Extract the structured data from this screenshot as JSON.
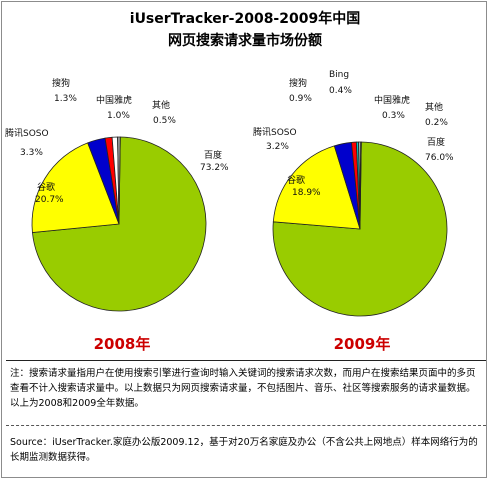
{
  "title_line1": "iUserTracker-2008-2009年中国",
  "title_line2": "网页搜索请求量市场份额",
  "chart_data": [
    {
      "type": "pie",
      "year_label": "2008年",
      "slices": [
        {
          "name": "百度",
          "value": 73.2,
          "label": "73.2%",
          "color": "#99cc00"
        },
        {
          "name": "谷歌",
          "value": 20.7,
          "label": "20.7%",
          "color": "#ffff00"
        },
        {
          "name": "腾讯SOSO",
          "value": 3.3,
          "label": "3.3%",
          "color": "#0000cc"
        },
        {
          "name": "搜狗",
          "value": 1.3,
          "label": "1.3%",
          "color": "#ff0000"
        },
        {
          "name": "中国雅虎",
          "value": 1.0,
          "label": "1.0%",
          "color": "#ffffff"
        },
        {
          "name": "其他",
          "value": 0.5,
          "label": "0.5%",
          "color": "#999999"
        }
      ]
    },
    {
      "type": "pie",
      "year_label": "2009年",
      "slices": [
        {
          "name": "百度",
          "value": 76.0,
          "label": "76.0%",
          "color": "#99cc00"
        },
        {
          "name": "谷歌",
          "value": 18.9,
          "label": "18.9%",
          "color": "#ffff00"
        },
        {
          "name": "腾讯SOSO",
          "value": 3.2,
          "label": "3.2%",
          "color": "#0000cc"
        },
        {
          "name": "搜狗",
          "value": 0.9,
          "label": "0.9%",
          "color": "#ff0000"
        },
        {
          "name": "Bing",
          "value": 0.4,
          "label": "0.4%",
          "color": "#00cccc"
        },
        {
          "name": "中国雅虎",
          "value": 0.3,
          "label": "0.3%",
          "color": "#ffffff"
        },
        {
          "name": "其他",
          "value": 0.2,
          "label": "0.2%",
          "color": "#999999"
        }
      ]
    }
  ],
  "note": "注：搜索请求量指用户在使用搜索引擎进行查询时输入关键词的搜索请求次数，而用户在搜索结果页面中的多页查看不计入搜索请求量中。以上数据只为网页搜索请求量，不包括图片、音乐、社区等搜索服务的请求量数据。以上为2008和2009全年数据。",
  "source": "Source：iUserTracker.家庭办公版2009.12，基于对20万名家庭及办公（不含公共上网地点）样本网络行为的长期监测数据获得。"
}
